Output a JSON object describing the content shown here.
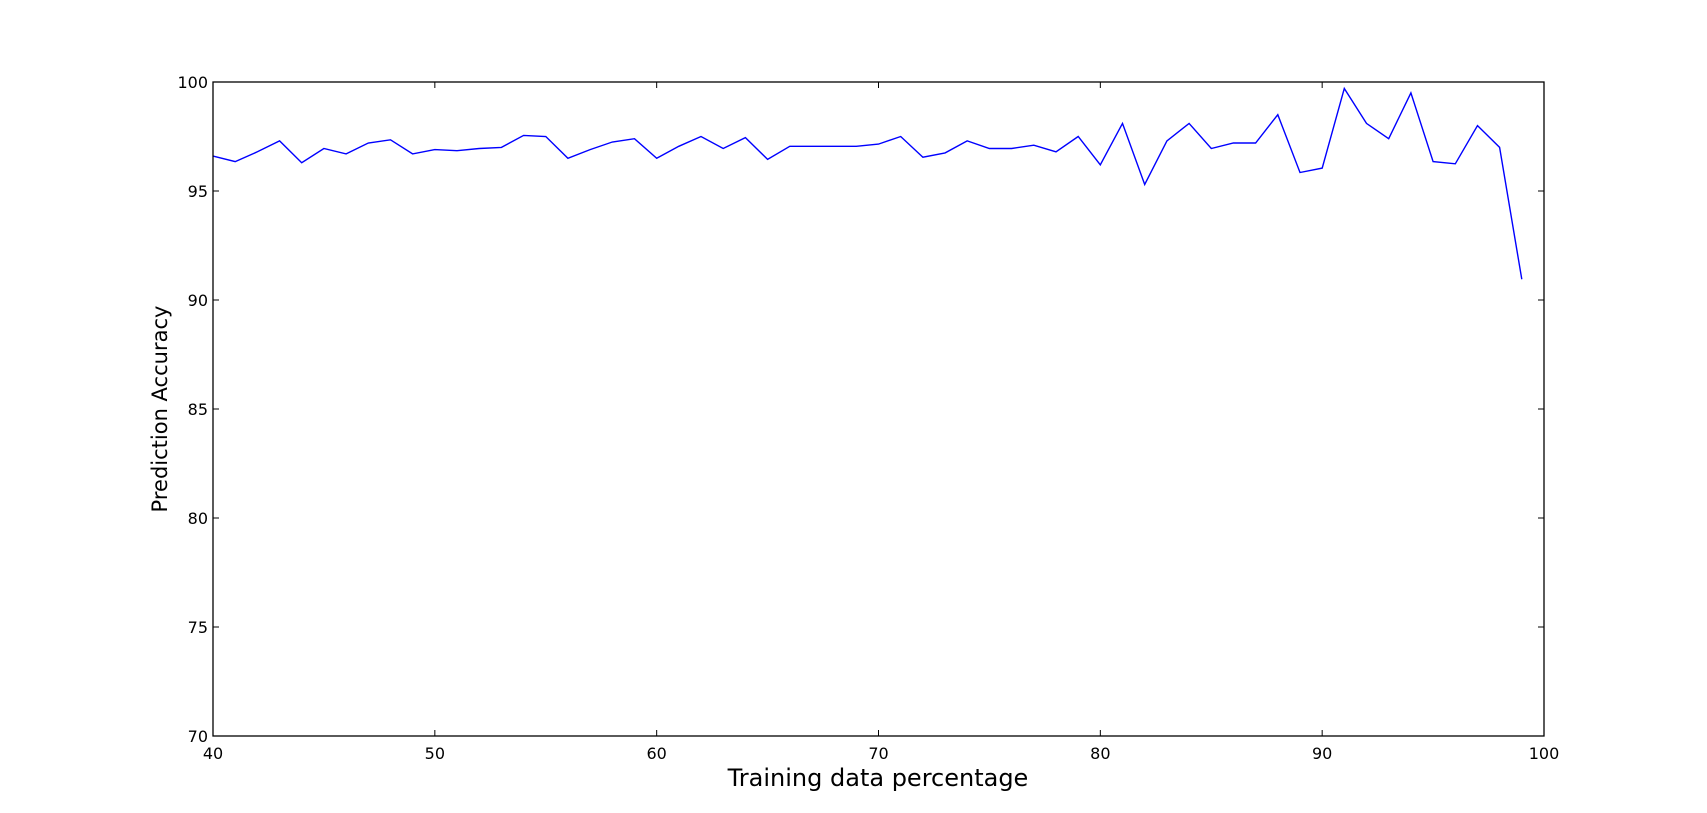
{
  "chart_data": {
    "type": "line",
    "title": "",
    "xlabel": "Training data percentage",
    "ylabel": "Prediction Accuracy",
    "xlim": [
      40,
      100
    ],
    "ylim": [
      70,
      100
    ],
    "xticks": [
      40,
      50,
      60,
      70,
      80,
      90,
      100
    ],
    "yticks": [
      70,
      75,
      80,
      85,
      90,
      95,
      100
    ],
    "xtick_labels": [
      "40",
      "50",
      "60",
      "70",
      "80",
      "90",
      "100"
    ],
    "ytick_labels": [
      "70",
      "75",
      "80",
      "85",
      "90",
      "95",
      "100"
    ],
    "grid": false,
    "legend": "none",
    "series": [
      {
        "color": "#0000ff",
        "x": [
          40,
          41,
          42,
          43,
          44,
          45,
          46,
          47,
          48,
          49,
          50,
          51,
          52,
          53,
          54,
          55,
          56,
          57,
          58,
          59,
          60,
          61,
          62,
          63,
          64,
          65,
          66,
          67,
          68,
          69,
          70,
          71,
          72,
          73,
          74,
          75,
          76,
          77,
          78,
          79,
          80,
          81,
          82,
          83,
          84,
          85,
          86,
          87,
          88,
          89,
          90,
          91,
          92,
          93,
          94,
          95,
          96,
          97,
          98,
          99
        ],
        "y": [
          96.6,
          96.35,
          96.8,
          97.3,
          96.3,
          96.95,
          96.7,
          97.2,
          97.35,
          96.7,
          96.9,
          96.85,
          96.95,
          97.0,
          97.55,
          97.5,
          96.5,
          96.9,
          97.25,
          97.4,
          96.5,
          97.05,
          97.5,
          96.95,
          97.45,
          96.45,
          97.05,
          97.05,
          97.05,
          97.05,
          97.15,
          97.5,
          96.55,
          96.75,
          97.3,
          96.95,
          96.95,
          97.1,
          96.8,
          97.5,
          96.2,
          98.1,
          95.3,
          97.3,
          98.1,
          96.95,
          97.2,
          97.2,
          98.5,
          95.85,
          96.05,
          99.7,
          98.1,
          97.4,
          99.5,
          96.35,
          96.25,
          98.0,
          97.0,
          90.95
        ]
      }
    ]
  }
}
